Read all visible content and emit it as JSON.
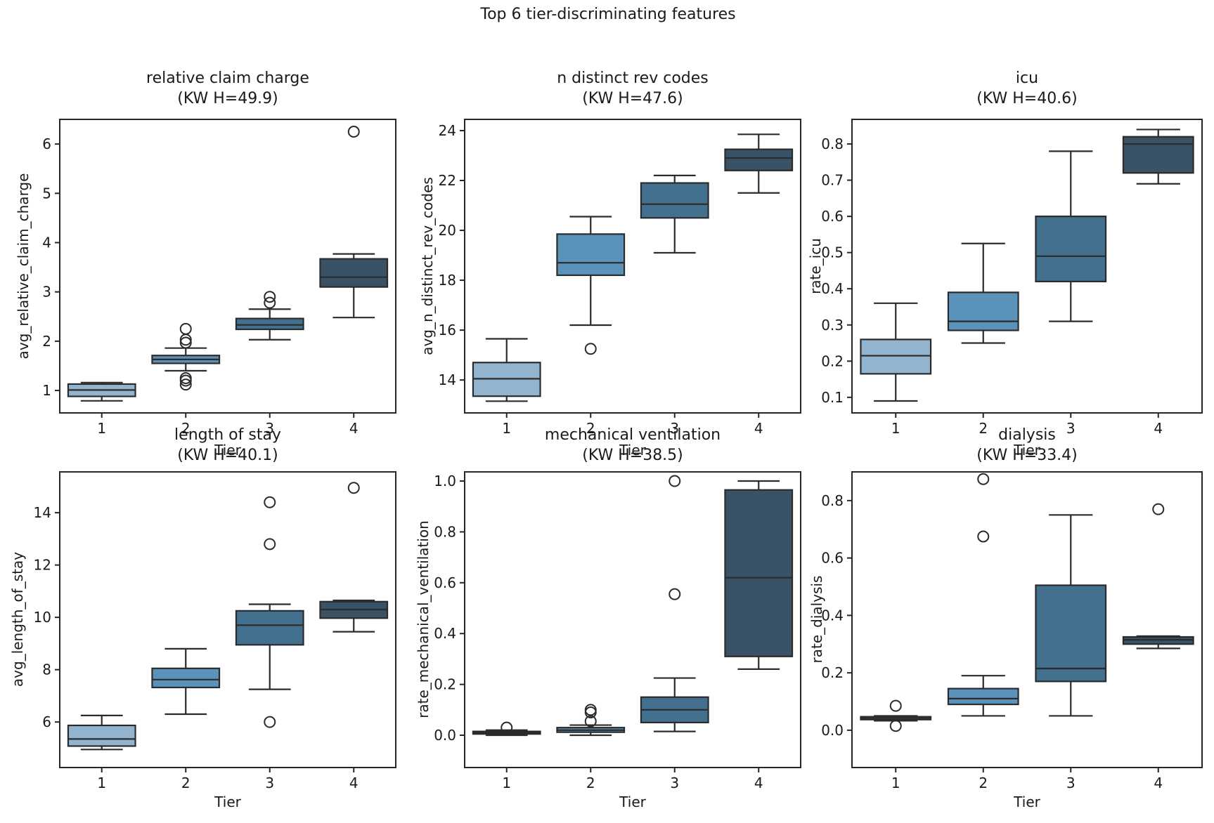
{
  "figure": {
    "title": "Top 6 tier-discriminating features"
  },
  "palette": [
    "#92b4ce",
    "#5b92ba",
    "#43708f",
    "#3a5266"
  ],
  "edge_color": "#2b2b2b",
  "chart_data": [
    {
      "type": "box",
      "title": "relative claim charge",
      "subtitle": "(KW H=49.9)",
      "xlabel": "Tier",
      "ylabel": "avg_relative_claim_charge",
      "categories": [
        "1",
        "2",
        "3",
        "4"
      ],
      "legend": null,
      "grid": false,
      "ylim": [
        0.545,
        6.5
      ],
      "yticks": [
        1,
        2,
        3,
        4,
        5,
        6
      ],
      "ytick_labels": [
        "1",
        "2",
        "3",
        "4",
        "5",
        "6"
      ],
      "boxes": [
        {
          "whislo": 0.79,
          "q1": 0.88,
          "med": 1.01,
          "q3": 1.13,
          "whishi": 1.16,
          "outliers": []
        },
        {
          "whislo": 1.4,
          "q1": 1.55,
          "med": 1.63,
          "q3": 1.71,
          "whishi": 1.86,
          "outliers": [
            1.12,
            1.2,
            1.25,
            1.97,
            2.03,
            2.25
          ]
        },
        {
          "whislo": 2.03,
          "q1": 2.24,
          "med": 2.33,
          "q3": 2.46,
          "whishi": 2.65,
          "outliers": [
            2.78,
            2.9
          ]
        },
        {
          "whislo": 2.48,
          "q1": 3.1,
          "med": 3.3,
          "q3": 3.67,
          "whishi": 3.77,
          "outliers": [
            6.25
          ]
        }
      ]
    },
    {
      "type": "box",
      "title": "n distinct rev codes",
      "subtitle": "(KW H=47.6)",
      "xlabel": "Tier",
      "ylabel": "avg_n_distinct_rev_codes",
      "categories": [
        "1",
        "2",
        "3",
        "4"
      ],
      "legend": null,
      "grid": false,
      "ylim": [
        12.68,
        24.45
      ],
      "yticks": [
        14,
        16,
        18,
        20,
        22,
        24
      ],
      "ytick_labels": [
        "14",
        "16",
        "18",
        "20",
        "22",
        "24"
      ],
      "boxes": [
        {
          "whislo": 13.15,
          "q1": 13.35,
          "med": 14.05,
          "q3": 14.7,
          "whishi": 15.65,
          "outliers": []
        },
        {
          "whislo": 16.2,
          "q1": 18.2,
          "med": 18.7,
          "q3": 19.85,
          "whishi": 20.55,
          "outliers": [
            15.25
          ]
        },
        {
          "whislo": 19.1,
          "q1": 20.5,
          "med": 21.05,
          "q3": 21.9,
          "whishi": 22.2,
          "outliers": []
        },
        {
          "whislo": 21.5,
          "q1": 22.4,
          "med": 22.9,
          "q3": 23.25,
          "whishi": 23.85,
          "outliers": []
        }
      ]
    },
    {
      "type": "box",
      "title": "icu",
      "subtitle": "(KW H=40.6)",
      "xlabel": "Tier",
      "ylabel": "rate_icu",
      "categories": [
        "1",
        "2",
        "3",
        "4"
      ],
      "legend": null,
      "grid": false,
      "ylim": [
        0.057,
        0.868
      ],
      "yticks": [
        0.1,
        0.2,
        0.3,
        0.4,
        0.5,
        0.6,
        0.7,
        0.8
      ],
      "ytick_labels": [
        "0.1",
        "0.2",
        "0.3",
        "0.4",
        "0.5",
        "0.6",
        "0.7",
        "0.8"
      ],
      "boxes": [
        {
          "whislo": 0.09,
          "q1": 0.165,
          "med": 0.215,
          "q3": 0.26,
          "whishi": 0.36,
          "outliers": []
        },
        {
          "whislo": 0.25,
          "q1": 0.285,
          "med": 0.31,
          "q3": 0.39,
          "whishi": 0.525,
          "outliers": []
        },
        {
          "whislo": 0.31,
          "q1": 0.42,
          "med": 0.49,
          "q3": 0.6,
          "whishi": 0.78,
          "outliers": []
        },
        {
          "whislo": 0.69,
          "q1": 0.72,
          "med": 0.8,
          "q3": 0.82,
          "whishi": 0.84,
          "outliers": []
        }
      ]
    },
    {
      "type": "box",
      "title": "length of stay",
      "subtitle": "(KW H=40.1)",
      "xlabel": "Tier",
      "ylabel": "avg_length_of_stay",
      "categories": [
        "1",
        "2",
        "3",
        "4"
      ],
      "legend": null,
      "grid": false,
      "ylim": [
        4.26,
        15.56
      ],
      "yticks": [
        6,
        8,
        10,
        12,
        14
      ],
      "ytick_labels": [
        "6",
        "8",
        "10",
        "12",
        "14"
      ],
      "boxes": [
        {
          "whislo": 4.95,
          "q1": 5.08,
          "med": 5.35,
          "q3": 5.87,
          "whishi": 6.25,
          "outliers": []
        },
        {
          "whislo": 6.3,
          "q1": 7.32,
          "med": 7.62,
          "q3": 8.05,
          "whishi": 8.8,
          "outliers": []
        },
        {
          "whislo": 7.25,
          "q1": 8.95,
          "med": 9.7,
          "q3": 10.25,
          "whishi": 10.5,
          "outliers": [
            6.0,
            12.8,
            14.4
          ]
        },
        {
          "whislo": 9.45,
          "q1": 9.97,
          "med": 10.3,
          "q3": 10.6,
          "whishi": 10.65,
          "outliers": [
            14.95
          ]
        }
      ]
    },
    {
      "type": "box",
      "title": "mechanical ventilation",
      "subtitle": "(KW H=38.5)",
      "xlabel": "Tier",
      "ylabel": "rate_mechanical_ventilation",
      "categories": [
        "1",
        "2",
        "3",
        "4"
      ],
      "legend": null,
      "grid": false,
      "ylim": [
        -0.127,
        1.036
      ],
      "yticks": [
        0.0,
        0.2,
        0.4,
        0.6,
        0.8,
        1.0
      ],
      "ytick_labels": [
        "0.0",
        "0.2",
        "0.4",
        "0.6",
        "0.8",
        "1.0"
      ],
      "boxes": [
        {
          "whislo": 0.0,
          "q1": 0.005,
          "med": 0.01,
          "q3": 0.015,
          "whishi": 0.02,
          "outliers": [
            0.03
          ]
        },
        {
          "whislo": 0.0,
          "q1": 0.012,
          "med": 0.02,
          "q3": 0.03,
          "whishi": 0.04,
          "outliers": [
            0.055,
            0.09,
            0.1
          ]
        },
        {
          "whislo": 0.015,
          "q1": 0.05,
          "med": 0.1,
          "q3": 0.15,
          "whishi": 0.225,
          "outliers": [
            0.555,
            1.0
          ]
        },
        {
          "whislo": 0.26,
          "q1": 0.31,
          "med": 0.62,
          "q3": 0.965,
          "whishi": 1.0,
          "outliers": []
        }
      ]
    },
    {
      "type": "box",
      "title": "dialysis",
      "subtitle": "(KW H=33.4)",
      "xlabel": "Tier",
      "ylabel": "rate_dialysis",
      "categories": [
        "1",
        "2",
        "3",
        "4"
      ],
      "legend": null,
      "grid": false,
      "ylim": [
        -0.13,
        0.9
      ],
      "yticks": [
        0.0,
        0.2,
        0.4,
        0.6,
        0.8
      ],
      "ytick_labels": [
        "0.0",
        "0.2",
        "0.4",
        "0.6",
        "0.8"
      ],
      "boxes": [
        {
          "whislo": 0.033,
          "q1": 0.037,
          "med": 0.042,
          "q3": 0.047,
          "whishi": 0.05,
          "outliers": [
            0.015,
            0.085
          ]
        },
        {
          "whislo": 0.05,
          "q1": 0.09,
          "med": 0.11,
          "q3": 0.145,
          "whishi": 0.19,
          "outliers": [
            0.675,
            0.875
          ]
        },
        {
          "whislo": 0.05,
          "q1": 0.17,
          "med": 0.215,
          "q3": 0.505,
          "whishi": 0.75,
          "outliers": []
        },
        {
          "whislo": 0.285,
          "q1": 0.3,
          "med": 0.315,
          "q3": 0.325,
          "whishi": 0.328,
          "outliers": [
            0.77
          ]
        }
      ]
    }
  ]
}
